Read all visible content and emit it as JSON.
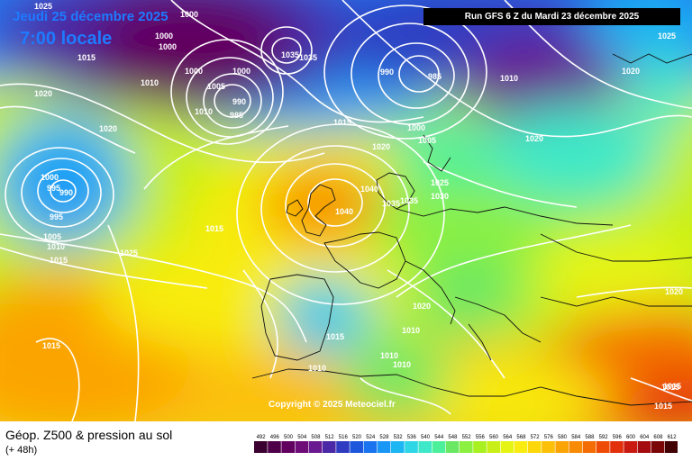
{
  "header": {
    "date": "Jeudi 25 décembre 2025",
    "local_time": "7:00 locale",
    "run_info": "Run GFS 6 Z du Mardi 23 décembre 2025"
  },
  "copyright": "Copyright © 2025 Meteociel.fr",
  "legend": {
    "title": "Géop. Z500 & pression au sol",
    "forecast_offset": "(+ 48h)",
    "scale_values": [
      492,
      496,
      500,
      504,
      508,
      512,
      516,
      520,
      524,
      528,
      532,
      536,
      540,
      544,
      548,
      552,
      556,
      560,
      564,
      568,
      572,
      576,
      580,
      584,
      588,
      592,
      596,
      600,
      604,
      608,
      612
    ],
    "scale_colors": [
      "#3a0030",
      "#4e0048",
      "#620060",
      "#6e0c78",
      "#6a1a90",
      "#4a28a6",
      "#2f3cc2",
      "#1e56dc",
      "#1a74f0",
      "#1a96f6",
      "#1cb6f2",
      "#2ed6e6",
      "#3ee8c8",
      "#4cf09a",
      "#6ae864",
      "#8cf040",
      "#a8f020",
      "#c8f018",
      "#e6f414",
      "#f8ec10",
      "#fcd80a",
      "#fcc008",
      "#fba406",
      "#f88a04",
      "#f46c04",
      "#ee4c06",
      "#e2300c",
      "#c81a10",
      "#a40c10",
      "#7a0608",
      "#400004"
    ]
  },
  "isobar_labels": [
    "1000",
    "1000",
    "1000",
    "1000",
    "1000",
    "1005",
    "990",
    "985",
    "1010",
    "1035",
    "1025",
    "1015",
    "1010",
    "1020",
    "1020",
    "1000",
    "990",
    "995",
    "995",
    "1005",
    "1010",
    "1015",
    "1025",
    "1015",
    "1015",
    "1015",
    "1020",
    "1040",
    "1040",
    "1035",
    "1035",
    "1030",
    "1025",
    "1010",
    "1005",
    "1000",
    "990",
    "985",
    "1020",
    "1020",
    "1025",
    "1020",
    "1020",
    "1010",
    "1010",
    "1010",
    "1010",
    "1015",
    "1015",
    "1015",
    "1015",
    "1035"
  ],
  "colors": {
    "header_blue": "#1e7bff",
    "isobar": "#ffffff",
    "banner": "#000000"
  }
}
